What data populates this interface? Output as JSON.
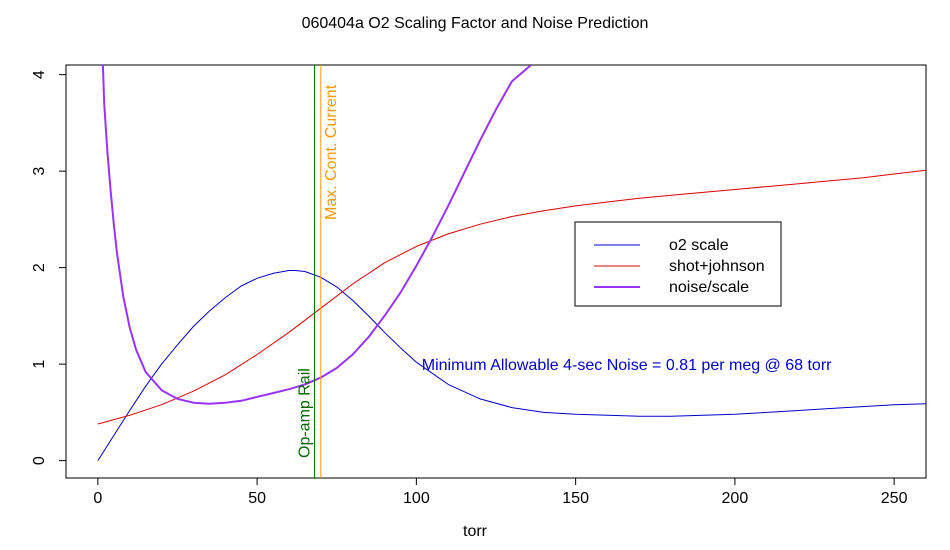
{
  "chart_data": {
    "type": "line",
    "title": "060404a   O2 Scaling Factor and Noise Prediction",
    "xlabel": "torr",
    "ylabel": "",
    "xlim": [
      -10,
      260
    ],
    "ylim": [
      -0.18,
      4.1
    ],
    "x_ticks": [
      0,
      50,
      100,
      150,
      200,
      250
    ],
    "y_ticks": [
      0,
      1,
      2,
      3,
      4
    ],
    "x_tick_labels": [
      "0",
      "50",
      "100",
      "150",
      "200",
      "250"
    ],
    "y_tick_labels": [
      "0",
      "1",
      "2",
      "3",
      "4"
    ],
    "legend": {
      "position": "center-right",
      "entries": [
        {
          "label": "o2 scale",
          "color": "#0000cc"
        },
        {
          "label": "shot+johnson",
          "color": "#dd0000"
        },
        {
          "label": "noise/scale",
          "color": "#9933ff"
        }
      ]
    },
    "series": [
      {
        "name": "o2 scale",
        "color": "#0000cc",
        "x": [
          0,
          5,
          10,
          15,
          20,
          25,
          30,
          35,
          40,
          45,
          50,
          55,
          60,
          62,
          65,
          70,
          75,
          80,
          85,
          90,
          95,
          100,
          110,
          120,
          130,
          140,
          150,
          160,
          170,
          180,
          190,
          200,
          210,
          220,
          230,
          240,
          250,
          260
        ],
        "values": [
          0.0,
          0.26,
          0.52,
          0.77,
          1.0,
          1.2,
          1.39,
          1.55,
          1.69,
          1.81,
          1.89,
          1.94,
          1.97,
          1.97,
          1.96,
          1.9,
          1.8,
          1.66,
          1.5,
          1.33,
          1.17,
          1.02,
          0.79,
          0.64,
          0.55,
          0.5,
          0.48,
          0.47,
          0.46,
          0.46,
          0.47,
          0.48,
          0.5,
          0.52,
          0.54,
          0.56,
          0.58,
          0.59
        ]
      },
      {
        "name": "shot+johnson",
        "color": "#dd0000",
        "x": [
          0,
          10,
          20,
          30,
          40,
          50,
          60,
          70,
          80,
          90,
          100,
          110,
          120,
          130,
          140,
          150,
          160,
          170,
          180,
          190,
          200,
          210,
          220,
          230,
          240,
          250,
          260
        ],
        "values": [
          0.38,
          0.47,
          0.58,
          0.72,
          0.89,
          1.1,
          1.33,
          1.58,
          1.83,
          2.05,
          2.22,
          2.35,
          2.45,
          2.53,
          2.59,
          2.64,
          2.68,
          2.72,
          2.75,
          2.78,
          2.81,
          2.84,
          2.87,
          2.9,
          2.93,
          2.97,
          3.01
        ]
      },
      {
        "name": "noise/scale",
        "color": "#9933ff",
        "x": [
          1.6,
          2,
          3,
          4,
          5,
          6,
          8,
          10,
          12,
          15,
          20,
          25,
          30,
          35,
          40,
          45,
          50,
          55,
          60,
          65,
          70,
          75,
          80,
          85,
          90,
          95,
          100,
          105,
          110,
          115,
          120,
          125,
          130,
          136
        ],
        "values": [
          4.1,
          3.7,
          3.2,
          2.8,
          2.45,
          2.15,
          1.7,
          1.38,
          1.15,
          0.92,
          0.73,
          0.64,
          0.6,
          0.59,
          0.6,
          0.62,
          0.66,
          0.7,
          0.74,
          0.79,
          0.86,
          0.96,
          1.1,
          1.28,
          1.5,
          1.74,
          2.02,
          2.32,
          2.64,
          2.98,
          3.32,
          3.64,
          3.93,
          4.1
        ]
      }
    ],
    "vlines": [
      {
        "name": "Op-amp Rail",
        "x": 68,
        "color": "#006600"
      },
      {
        "name": "Max. Cont. Current",
        "x": 70,
        "color": "#ff9900"
      }
    ],
    "annotations": [
      {
        "text": "Minimum Allowable 4-sec Noise =  0.81  per meg @  68  torr",
        "x": 102,
        "y": 1.0,
        "color": "#0000cc"
      }
    ]
  }
}
